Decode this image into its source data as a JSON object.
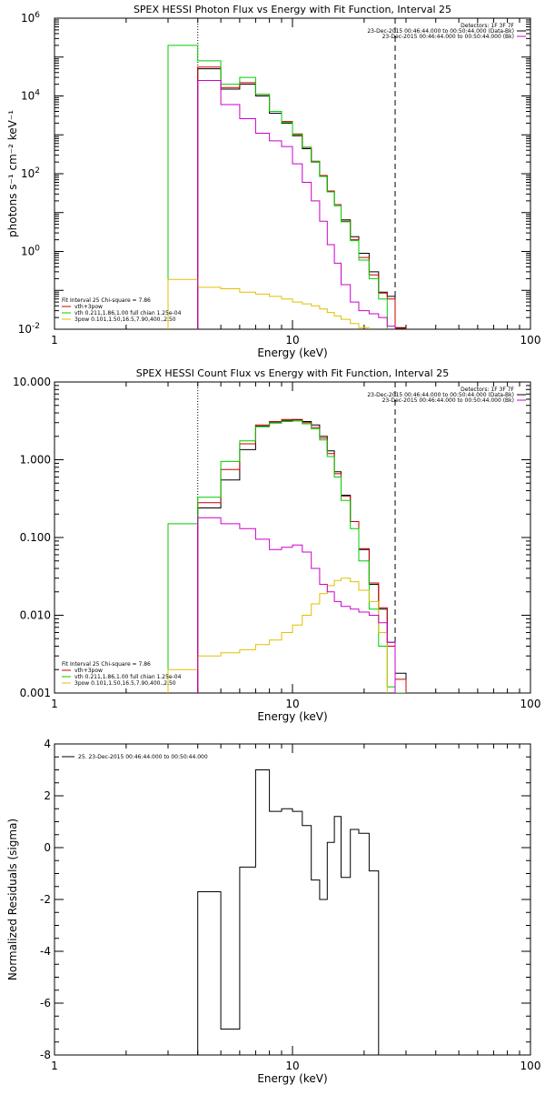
{
  "colors": {
    "data": "#000000",
    "vth": "#00cc00",
    "total": "#cc0000",
    "pow": "#e0c000",
    "bk": "#cc00cc"
  },
  "chart_data": [
    {
      "type": "line",
      "title": "SPEX HESSI Photon Flux vs Energy with Fit Function, Interval 25",
      "xlabel": "Energy (keV)",
      "ylabel": "photons s⁻¹ cm⁻² keV⁻¹",
      "xscale": "log",
      "yscale": "log",
      "xlim": [
        1,
        100
      ],
      "ylim": [
        0.01,
        1000000
      ],
      "xticks": [
        {
          "v": 1,
          "t": "1"
        },
        {
          "v": 10,
          "t": "10"
        },
        {
          "v": 100,
          "t": "100"
        }
      ],
      "yticks": [
        {
          "v": 0.01,
          "t": "10",
          "e": "-2"
        },
        {
          "v": 1,
          "t": "10",
          "e": "0"
        },
        {
          "v": 100,
          "t": "10",
          "e": "2"
        },
        {
          "v": 10000,
          "t": "10",
          "e": "4"
        },
        {
          "v": 1000000,
          "t": "10",
          "e": "6"
        }
      ],
      "vlines": [
        {
          "x": 4,
          "style": "dotted"
        },
        {
          "x": 27,
          "style": "dashed"
        }
      ],
      "legend_top": [
        "Detectors: 1F 3F 7F",
        "23-Dec-2015 00:46:44.000 to 00:50:44.000 (Data-Bk)",
        "23-Dec-2015 00:46:44.000 to 00:50:44.000 (Bk)"
      ],
      "legend_bottom": [
        "Fit Interval 25   Chi-square = 7.86",
        "vth+3pow",
        "vth 0.211,1.86,1.00  full chian 1.25e-04",
        "3pow 0.101,1.50,16.5,7.90,400.,2.50"
      ],
      "edges": [
        3.0,
        4.0,
        5.0,
        6.0,
        7.0,
        8.0,
        9.0,
        10.0,
        11.0,
        12.0,
        13.0,
        14.0,
        15.0,
        16.0,
        17.5,
        19.0,
        21.0,
        23.0,
        25.0,
        27.0,
        30.0
      ],
      "series": [
        {
          "name": "Data-Bk",
          "values": [
            null,
            50000,
            15000,
            20000,
            10000,
            3600,
            2000,
            950,
            440,
            200,
            85,
            35,
            16,
            6.5,
            2.4,
            0.9,
            0.3,
            0.09,
            0.07,
            0.011
          ],
          "color": "#000000",
          "start": 1
        },
        {
          "name": "vth+3pow",
          "values": [
            null,
            55000,
            16500,
            22000,
            11000,
            4000,
            2200,
            1050,
            480,
            210,
            90,
            36,
            16,
            6,
            2,
            0.7,
            0.25,
            0.085,
            0.06,
            0.0105
          ],
          "color": "#cc0000",
          "start": 1
        },
        {
          "name": "vth",
          "values": [
            200000,
            80000,
            20000,
            30000,
            11000,
            4000,
            2100,
            1000,
            470,
            205,
            85,
            34,
            15,
            5.8,
            1.9,
            0.6,
            0.2,
            0.06,
            0.009,
            0.004
          ],
          "color": "#00cc00",
          "start": 0
        },
        {
          "name": "3pow",
          "values": [
            0.19,
            0.12,
            0.11,
            0.09,
            0.08,
            0.07,
            0.06,
            0.05,
            0.045,
            0.04,
            0.033,
            0.027,
            0.022,
            0.018,
            0.014,
            0.011,
            0.008,
            0.006,
            0.005,
            null
          ],
          "color": "#e0c000",
          "start": 0
        },
        {
          "name": "Bk",
          "values": [
            null,
            25000,
            6000,
            2600,
            1100,
            700,
            500,
            180,
            60,
            20,
            6,
            1.5,
            0.5,
            0.14,
            0.05,
            0.03,
            0.025,
            0.02,
            0.012,
            null
          ],
          "color": "#cc00cc",
          "start": 1
        }
      ]
    },
    {
      "type": "line",
      "title": "SPEX HESSI Count Flux vs Energy with Fit Function, Interval 25",
      "xlabel": "Energy (keV)",
      "ylabel": "",
      "xscale": "log",
      "yscale": "log",
      "xlim": [
        1,
        100
      ],
      "ylim": [
        0.001,
        10
      ],
      "xticks": [
        {
          "v": 1,
          "t": "1"
        },
        {
          "v": 10,
          "t": "10"
        },
        {
          "v": 100,
          "t": "100"
        }
      ],
      "yticks": [
        {
          "v": 0.001,
          "t": "0.001"
        },
        {
          "v": 0.01,
          "t": "0.010"
        },
        {
          "v": 0.1,
          "t": "0.100"
        },
        {
          "v": 1,
          "t": "1.000"
        },
        {
          "v": 10,
          "t": "10.000"
        }
      ],
      "vlines": [
        {
          "x": 4,
          "style": "dotted"
        },
        {
          "x": 27,
          "style": "dashed"
        }
      ],
      "legend_top": [
        "Detectors: 1F 3F 7F",
        "23-Dec-2015 00:46:44.000 to 00:50:44.000 (Data-Bk)",
        "23-Dec-2015 00:46:44.000 to 00:50:44.000 (Bk)"
      ],
      "legend_bottom": [
        "Fit Interval 25   Chi-square = 7.86",
        "vth+3pow",
        "vth 0.211,1.86,1.00  full chian 1.25e-04",
        "3pow 0.101,1.50,16.5,7.90,400.,2.50"
      ],
      "edges": [
        3.0,
        4.0,
        5.0,
        6.0,
        7.0,
        8.0,
        9.0,
        10.0,
        11.0,
        12.0,
        13.0,
        14.0,
        15.0,
        16.0,
        17.5,
        19.0,
        21.0,
        23.0,
        25.0,
        27.0,
        30.0
      ],
      "series": [
        {
          "name": "Data-Bk",
          "values": [
            null,
            0.24,
            0.55,
            1.35,
            2.7,
            3.0,
            3.2,
            3.3,
            3.1,
            2.8,
            2.0,
            1.3,
            0.7,
            0.35,
            0.16,
            0.07,
            0.025,
            0.012,
            0.0045,
            0.0018
          ],
          "color": "#000000",
          "start": 1
        },
        {
          "name": "vth+3pow",
          "values": [
            null,
            0.28,
            0.75,
            1.6,
            2.8,
            3.1,
            3.3,
            3.25,
            3.0,
            2.6,
            1.9,
            1.2,
            0.66,
            0.34,
            0.16,
            0.072,
            0.026,
            0.0125,
            0.004,
            0.0015
          ],
          "color": "#cc0000",
          "start": 1
        },
        {
          "name": "vth",
          "values": [
            0.15,
            0.33,
            0.95,
            1.75,
            2.65,
            2.95,
            3.1,
            3.15,
            2.9,
            2.5,
            1.8,
            1.1,
            0.6,
            0.3,
            0.13,
            0.05,
            0.012,
            0.004,
            0.0012,
            0.001
          ],
          "color": "#00cc00",
          "start": 0
        },
        {
          "name": "3pow",
          "values": [
            0.002,
            0.003,
            0.0033,
            0.0036,
            0.0042,
            0.0048,
            0.006,
            0.0075,
            0.01,
            0.014,
            0.019,
            0.024,
            0.028,
            0.03,
            0.027,
            0.021,
            0.015,
            0.006,
            0.0008,
            null
          ],
          "color": "#e0c000",
          "start": 0
        },
        {
          "name": "Bk",
          "values": [
            null,
            0.18,
            0.15,
            0.13,
            0.095,
            0.07,
            0.075,
            0.08,
            0.065,
            0.04,
            0.025,
            0.02,
            0.015,
            0.013,
            0.012,
            0.011,
            0.01,
            0.008,
            0.0045,
            null
          ],
          "color": "#cc00cc",
          "start": 1
        }
      ]
    },
    {
      "type": "line",
      "title": "",
      "xlabel": "Energy (keV)",
      "ylabel": "Normalized Residuals (sigma)",
      "xscale": "log",
      "yscale": "linear",
      "xlim": [
        1,
        100
      ],
      "ylim": [
        -8,
        4
      ],
      "xticks": [
        {
          "v": 1,
          "t": "1"
        },
        {
          "v": 10,
          "t": "10"
        },
        {
          "v": 100,
          "t": "100"
        }
      ],
      "yticks": [
        {
          "v": -8,
          "t": "-8"
        },
        {
          "v": -6,
          "t": "-6"
        },
        {
          "v": -4,
          "t": "-4"
        },
        {
          "v": -2,
          "t": "-2"
        },
        {
          "v": 0,
          "t": "0"
        },
        {
          "v": 2,
          "t": "2"
        },
        {
          "v": 4,
          "t": "4"
        }
      ],
      "legend_top": [
        "25. 23-Dec-2015 00:46:44.000 to 00:50:44.000"
      ],
      "edges": [
        4.0,
        5.0,
        6.0,
        7.0,
        8.0,
        9.0,
        10.0,
        11.0,
        12.0,
        13.0,
        14.0,
        15.0,
        16.0,
        17.5,
        19.0,
        21.0,
        23.0,
        25.0,
        27.0
      ],
      "series": [
        {
          "name": "",
          "values": [
            -1.7,
            -7.0,
            -0.75,
            3.0,
            1.4,
            1.5,
            1.4,
            0.85,
            -1.25,
            -2.0,
            0.2,
            1.2,
            -1.15,
            0.7,
            0.55,
            -0.9,
            null,
            null
          ],
          "color": "#000000",
          "start": 0
        }
      ]
    }
  ]
}
